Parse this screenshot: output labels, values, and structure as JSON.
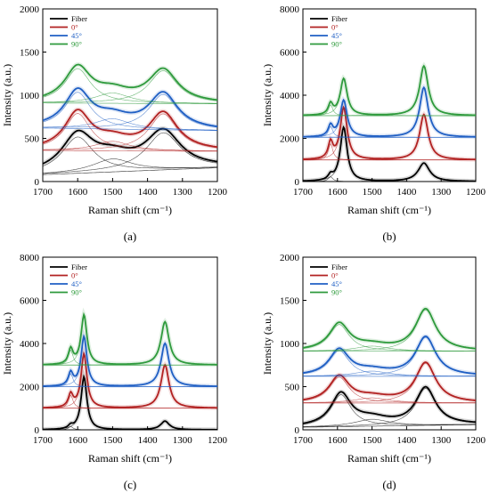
{
  "figure": {
    "x_axis_label": "Raman shift (cm⁻¹)",
    "y_axis_label": "Intensity (a.u.)"
  },
  "chart_data": [
    {
      "panel": "(a)",
      "type": "line",
      "xlabel": "Raman shift (cm⁻¹)",
      "ylabel": "Intensity (a.u.)",
      "xlim": [
        1700,
        1200
      ],
      "x_reversed": true,
      "ylim": [
        0,
        2000
      ],
      "x_ticks": [
        1700,
        1600,
        1500,
        1400,
        1300,
        1200
      ],
      "y_ticks": [
        0,
        500,
        1000,
        1500,
        2000
      ],
      "legend": [
        "Fiber",
        "0°",
        "45°",
        "90°"
      ],
      "legend_placement": "top-left",
      "series": [
        {
          "name": "Fiber",
          "color": "#000000",
          "baseline": 0,
          "background": [
            [
              1700,
              80
            ],
            [
              1200,
              160
            ]
          ],
          "peaks": [
            {
              "center": 1600,
              "height": 420,
              "width": 55
            },
            {
              "center": 1500,
              "height": 150,
              "width": 70
            },
            {
              "center": 1355,
              "height": 430,
              "width": 60
            }
          ]
        },
        {
          "name": "0°",
          "color": "#b22222",
          "baseline": 350,
          "background": [
            [
              1700,
              360
            ],
            [
              1200,
              350
            ]
          ],
          "peaks": [
            {
              "center": 1600,
              "height": 430,
              "width": 45
            },
            {
              "center": 1500,
              "height": 110,
              "width": 60
            },
            {
              "center": 1355,
              "height": 430,
              "width": 50
            }
          ]
        },
        {
          "name": "45°",
          "color": "#1f5fc4",
          "baseline": 620,
          "background": [
            [
              1700,
              620
            ],
            [
              1200,
              590
            ]
          ],
          "peaks": [
            {
              "center": 1600,
              "height": 420,
              "width": 45
            },
            {
              "center": 1500,
              "height": 120,
              "width": 60
            },
            {
              "center": 1355,
              "height": 410,
              "width": 50
            }
          ]
        },
        {
          "name": "90°",
          "color": "#2e9a3c",
          "baseline": 910,
          "background": [
            [
              1700,
              910
            ],
            [
              1200,
              900
            ]
          ],
          "peaks": [
            {
              "center": 1600,
              "height": 400,
              "width": 45
            },
            {
              "center": 1500,
              "height": 120,
              "width": 60
            },
            {
              "center": 1355,
              "height": 380,
              "width": 50
            }
          ]
        }
      ]
    },
    {
      "panel": "(b)",
      "type": "line",
      "xlabel": "Raman shift (cm⁻¹)",
      "ylabel": "Intensity (a.u.)",
      "xlim": [
        1700,
        1200
      ],
      "x_reversed": true,
      "ylim": [
        0,
        8000
      ],
      "x_ticks": [
        1700,
        1600,
        1500,
        1400,
        1300,
        1200
      ],
      "y_ticks": [
        0,
        2000,
        4000,
        6000,
        8000
      ],
      "legend": [
        "Fiber",
        "0°",
        "45°",
        "90°"
      ],
      "legend_placement": "top-left",
      "series": [
        {
          "name": "Fiber",
          "color": "#000000",
          "baseline": 0,
          "background": [
            [
              1700,
              0
            ],
            [
              1200,
              0
            ]
          ],
          "peaks": [
            {
              "center": 1582,
              "height": 2500,
              "width": 12
            },
            {
              "center": 1620,
              "height": 220,
              "width": 8
            },
            {
              "center": 1350,
              "height": 850,
              "width": 20
            }
          ]
        },
        {
          "name": "0°",
          "color": "#b22222",
          "baseline": 1000,
          "background": [
            [
              1700,
              1000
            ],
            [
              1200,
              1000
            ]
          ],
          "peaks": [
            {
              "center": 1582,
              "height": 2400,
              "width": 12
            },
            {
              "center": 1620,
              "height": 750,
              "width": 8
            },
            {
              "center": 1350,
              "height": 2100,
              "width": 15
            }
          ]
        },
        {
          "name": "45°",
          "color": "#1f5fc4",
          "baseline": 2050,
          "background": [
            [
              1700,
              2050
            ],
            [
              1200,
              2050
            ]
          ],
          "peaks": [
            {
              "center": 1582,
              "height": 1700,
              "width": 12
            },
            {
              "center": 1620,
              "height": 500,
              "width": 8
            },
            {
              "center": 1350,
              "height": 2300,
              "width": 15
            }
          ]
        },
        {
          "name": "90°",
          "color": "#2e9a3c",
          "baseline": 3050,
          "background": [
            [
              1700,
              3050
            ],
            [
              1200,
              3050
            ]
          ],
          "peaks": [
            {
              "center": 1582,
              "height": 1700,
              "width": 12
            },
            {
              "center": 1620,
              "height": 500,
              "width": 8
            },
            {
              "center": 1350,
              "height": 2300,
              "width": 15
            }
          ]
        }
      ]
    },
    {
      "panel": "(c)",
      "type": "line",
      "xlabel": "Raman shift (cm⁻¹)",
      "ylabel": "Intensity (a.u.)",
      "xlim": [
        1700,
        1200
      ],
      "x_reversed": true,
      "ylim": [
        0,
        8000
      ],
      "x_ticks": [
        1700,
        1600,
        1500,
        1400,
        1300,
        1200
      ],
      "y_ticks": [
        0,
        2000,
        4000,
        6000,
        8000
      ],
      "legend": [
        "Fiber",
        "0°",
        "45°",
        "90°"
      ],
      "legend_placement": "top-left",
      "series": [
        {
          "name": "Fiber",
          "color": "#000000",
          "baseline": 0,
          "background": [
            [
              1700,
              0
            ],
            [
              1200,
              0
            ]
          ],
          "peaks": [
            {
              "center": 1582,
              "height": 2450,
              "width": 10
            },
            {
              "center": 1620,
              "height": 150,
              "width": 8
            },
            {
              "center": 1350,
              "height": 400,
              "width": 15
            }
          ]
        },
        {
          "name": "0°",
          "color": "#b22222",
          "baseline": 1000,
          "background": [
            [
              1700,
              1000
            ],
            [
              1200,
              1000
            ]
          ],
          "peaks": [
            {
              "center": 1582,
              "height": 2500,
              "width": 10
            },
            {
              "center": 1620,
              "height": 600,
              "width": 8
            },
            {
              "center": 1350,
              "height": 2000,
              "width": 14
            }
          ]
        },
        {
          "name": "45°",
          "color": "#1f5fc4",
          "baseline": 2000,
          "background": [
            [
              1700,
              2000
            ],
            [
              1200,
              2000
            ]
          ],
          "peaks": [
            {
              "center": 1582,
              "height": 2300,
              "width": 10
            },
            {
              "center": 1620,
              "height": 600,
              "width": 8
            },
            {
              "center": 1350,
              "height": 2000,
              "width": 14
            }
          ]
        },
        {
          "name": "90°",
          "color": "#2e9a3c",
          "baseline": 3000,
          "background": [
            [
              1700,
              3000
            ],
            [
              1200,
              3000
            ]
          ],
          "peaks": [
            {
              "center": 1582,
              "height": 2300,
              "width": 10
            },
            {
              "center": 1620,
              "height": 700,
              "width": 8
            },
            {
              "center": 1350,
              "height": 2000,
              "width": 14
            }
          ]
        }
      ]
    },
    {
      "panel": "(d)",
      "type": "line",
      "xlabel": "Raman shift (cm⁻¹)",
      "ylabel": "Intensity (a.u.)",
      "xlim": [
        1700,
        1200
      ],
      "x_reversed": true,
      "ylim": [
        0,
        2000
      ],
      "x_ticks": [
        1700,
        1600,
        1500,
        1400,
        1300,
        1200
      ],
      "y_ticks": [
        0,
        500,
        1000,
        1500,
        2000
      ],
      "legend": [
        "Fiber",
        "0°",
        "45°",
        "90°"
      ],
      "legend_placement": "top-left",
      "series": [
        {
          "name": "Fiber",
          "color": "#000000",
          "baseline": 0,
          "background": [
            [
              1700,
              30
            ],
            [
              1200,
              60
            ]
          ],
          "peaks": [
            {
              "center": 1590,
              "height": 370,
              "width": 35
            },
            {
              "center": 1500,
              "height": 80,
              "width": 60
            },
            {
              "center": 1345,
              "height": 430,
              "width": 35
            }
          ]
        },
        {
          "name": "0°",
          "color": "#b22222",
          "baseline": 310,
          "background": [
            [
              1700,
              310
            ],
            [
              1200,
              310
            ]
          ],
          "peaks": [
            {
              "center": 1595,
              "height": 300,
              "width": 35
            },
            {
              "center": 1500,
              "height": 60,
              "width": 60
            },
            {
              "center": 1345,
              "height": 460,
              "width": 35
            }
          ]
        },
        {
          "name": "45°",
          "color": "#1f5fc4",
          "baseline": 620,
          "background": [
            [
              1700,
              620
            ],
            [
              1200,
              620
            ]
          ],
          "peaks": [
            {
              "center": 1595,
              "height": 300,
              "width": 35
            },
            {
              "center": 1500,
              "height": 60,
              "width": 60
            },
            {
              "center": 1345,
              "height": 450,
              "width": 35
            }
          ]
        },
        {
          "name": "90°",
          "color": "#2e9a3c",
          "baseline": 910,
          "background": [
            [
              1700,
              910
            ],
            [
              1200,
              910
            ]
          ],
          "peaks": [
            {
              "center": 1595,
              "height": 310,
              "width": 35
            },
            {
              "center": 1500,
              "height": 60,
              "width": 60
            },
            {
              "center": 1345,
              "height": 480,
              "width": 35
            }
          ]
        }
      ]
    }
  ]
}
